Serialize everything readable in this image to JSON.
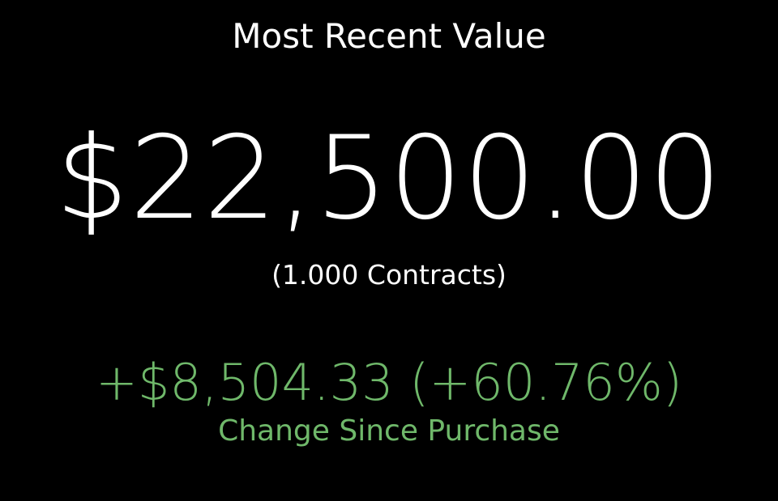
{
  "title": "Most Recent Value",
  "value": "$22,500.00",
  "contracts": "(1.000 Contracts)",
  "change": "+$8,504.33 (+60.76%)",
  "change_label": "Change Since Purchase",
  "colors": {
    "background": "#000000",
    "text": "#ffffff",
    "positive": "#6fb86a"
  }
}
